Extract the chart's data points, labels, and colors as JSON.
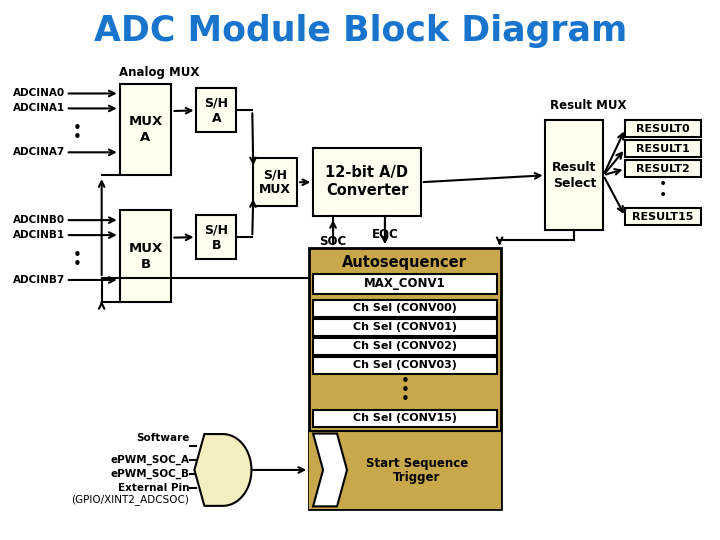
{
  "title": "ADC Module Block Diagram",
  "title_color": "#1874CD",
  "bg_color": "#FFFFFF",
  "box_light": "#FFFFF0",
  "box_tan": "#C8A84B",
  "box_edge": "#000000",
  "result_labels": [
    "RESULT0",
    "RESULT1",
    "RESULT2",
    "RESULT15"
  ],
  "conv_labels": [
    "Ch Sel (CONV00)",
    "Ch Sel (CONV01)",
    "Ch Sel (CONV02)",
    "Ch Sel (CONV03)",
    "Ch Sel (CONV15)"
  ]
}
